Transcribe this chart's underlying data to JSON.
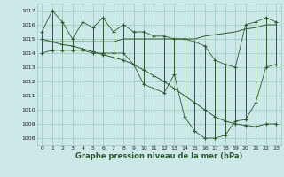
{
  "title": "Graphe pression niveau de la mer (hPa)",
  "bg_color": "#cce8e8",
  "grid_color": "#99ccbb",
  "line_color": "#2d5a2d",
  "ylim": [
    1007.5,
    1017.5
  ],
  "xlim": [
    -0.5,
    23.5
  ],
  "yticks": [
    1008,
    1009,
    1010,
    1011,
    1012,
    1013,
    1014,
    1015,
    1016,
    1017
  ],
  "xticks": [
    0,
    1,
    2,
    3,
    4,
    5,
    6,
    7,
    8,
    9,
    10,
    11,
    12,
    13,
    14,
    15,
    16,
    17,
    18,
    19,
    20,
    21,
    22,
    23
  ],
  "series_max": [
    1015.5,
    1017.0,
    1016.2,
    1015.0,
    1016.2,
    1015.8,
    1016.5,
    1015.5,
    1016.0,
    1015.5,
    1015.5,
    1015.2,
    1015.2,
    1015.0,
    1015.0,
    1014.8,
    1014.5,
    1013.5,
    1013.2,
    1013.0,
    1016.0,
    1016.2,
    1016.5,
    1016.2
  ],
  "series_min": [
    1014.0,
    1014.2,
    1014.2,
    1014.2,
    1014.2,
    1014.0,
    1014.0,
    1014.0,
    1014.0,
    1013.2,
    1011.8,
    1011.5,
    1011.2,
    1012.5,
    1009.5,
    1008.5,
    1008.0,
    1008.0,
    1008.2,
    1009.2,
    1009.3,
    1010.5,
    1013.0,
    1013.2
  ],
  "series_trend": [
    1015.0,
    1014.8,
    1014.6,
    1014.5,
    1014.3,
    1014.1,
    1013.9,
    1013.7,
    1013.5,
    1013.2,
    1012.8,
    1012.4,
    1012.0,
    1011.5,
    1011.0,
    1010.5,
    1010.0,
    1009.5,
    1009.2,
    1009.0,
    1008.9,
    1008.8,
    1009.0,
    1009.0
  ],
  "series_upper": [
    1014.8,
    1014.8,
    1014.8,
    1014.8,
    1014.8,
    1014.8,
    1014.8,
    1014.8,
    1015.0,
    1015.0,
    1015.0,
    1015.0,
    1015.0,
    1015.0,
    1015.0,
    1015.0,
    1015.2,
    1015.3,
    1015.4,
    1015.5,
    1015.7,
    1015.8,
    1016.0,
    1016.0
  ],
  "figsize": [
    3.2,
    2.0
  ],
  "dpi": 100
}
